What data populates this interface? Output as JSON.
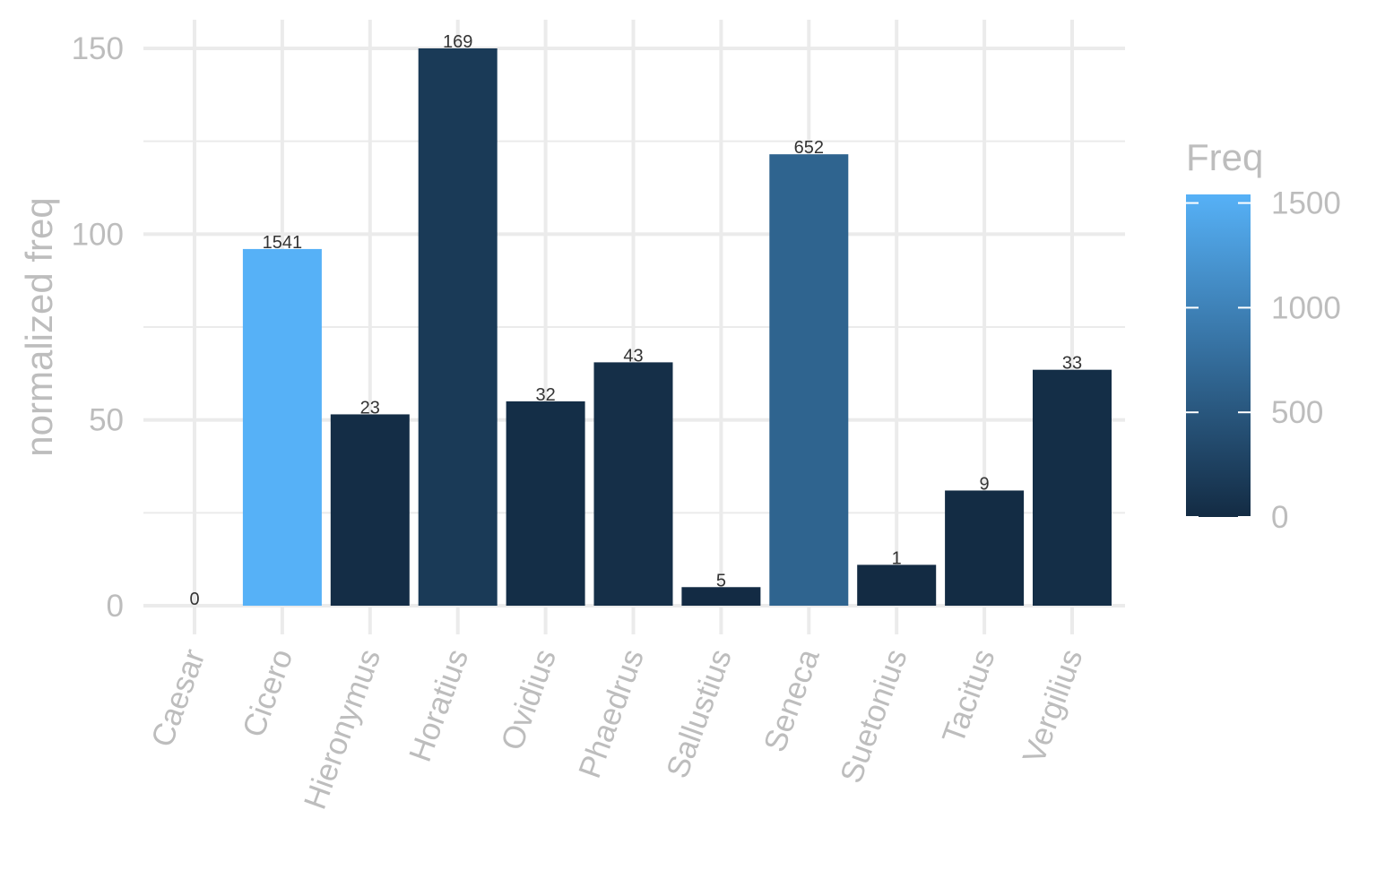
{
  "chart_data": {
    "type": "bar",
    "categories": [
      "Caesar",
      "Cicero",
      "Hieronymus",
      "Horatius",
      "Ovidius",
      "Phaedrus",
      "Sallustius",
      "Seneca",
      "Suetonius",
      "Tacitus",
      "Vergilius"
    ],
    "values": [
      0,
      96,
      51.5,
      150,
      55,
      65.5,
      5,
      121.5,
      11,
      31,
      63.5
    ],
    "freq": [
      0,
      1541,
      23,
      169,
      32,
      43,
      5,
      652,
      1,
      9,
      33
    ],
    "data_labels": [
      "0",
      "1541",
      "23",
      "169",
      "32",
      "43",
      "5",
      "652",
      "1",
      "9",
      "33"
    ],
    "xlabel": "",
    "ylabel": "normalized freq",
    "ylim": [
      0,
      150
    ],
    "yticks": [
      "0",
      "50",
      "100",
      "150"
    ],
    "grid": true,
    "legend": {
      "title": "Freq",
      "placement": "right",
      "range": [
        0,
        1541
      ],
      "ticks": [
        "0",
        "500",
        "1000",
        "1500"
      ],
      "color_low": "#132B43",
      "color_high": "#56B1F7"
    }
  }
}
